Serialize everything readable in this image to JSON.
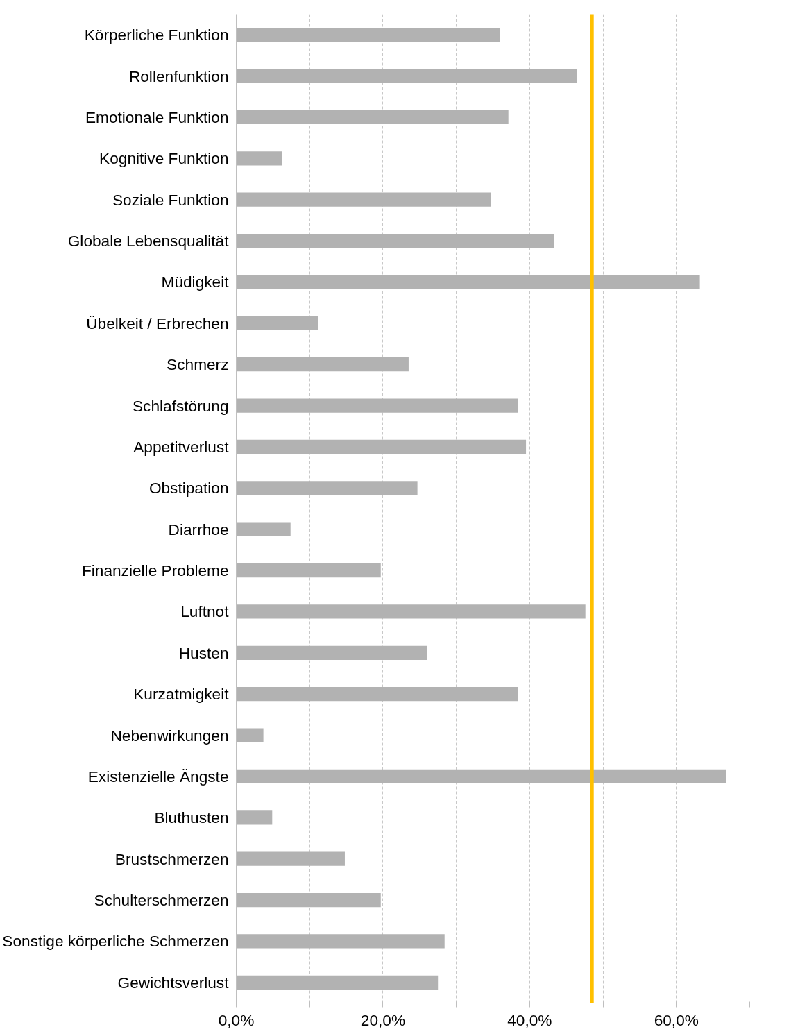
{
  "chart_data": {
    "type": "bar",
    "orientation": "horizontal",
    "categories": [
      "Körperliche Funktion",
      "Rollenfunktion",
      "Emotionale Funktion",
      "Kognitive Funktion",
      "Soziale Funktion",
      "Globale Lebensqualität",
      "Müdigkeit",
      "Übelkeit / Erbrechen",
      "Schmerz",
      "Schlafstörung",
      "Appetitverlust",
      "Obstipation",
      "Diarrhoe",
      "Finanzielle Probleme",
      "Luftnot",
      "Husten",
      "Kurzatmigkeit",
      "Nebenwirkungen",
      "Existenzielle Ängste",
      "Bluthusten",
      "Brustschmerzen",
      "Schulterschmerzen",
      "Sonstige körperliche Schmerzen",
      "Gewichtsverlust"
    ],
    "values": [
      35.9,
      46.4,
      37.1,
      6.2,
      34.7,
      43.3,
      63.2,
      11.2,
      23.5,
      38.4,
      39.5,
      24.7,
      7.4,
      19.7,
      47.6,
      26.0,
      38.4,
      3.7,
      66.8,
      4.9,
      14.8,
      19.7,
      28.4,
      27.5
    ],
    "color": "#b2b2b2",
    "xlim": [
      0,
      70
    ],
    "xticks": [
      {
        "value": 0,
        "label": "0,0%"
      },
      {
        "value": 10,
        "label": null
      },
      {
        "value": 20,
        "label": "20,0%"
      },
      {
        "value": 30,
        "label": null
      },
      {
        "value": 40,
        "label": "40,0%"
      },
      {
        "value": 50,
        "label": null
      },
      {
        "value": 60,
        "label": "60,0%"
      },
      {
        "value": 70,
        "label": null
      }
    ],
    "grid": "x",
    "ref_lines": [
      {
        "axis": "x",
        "value": 48.5,
        "color": "#ffc000"
      }
    ]
  }
}
